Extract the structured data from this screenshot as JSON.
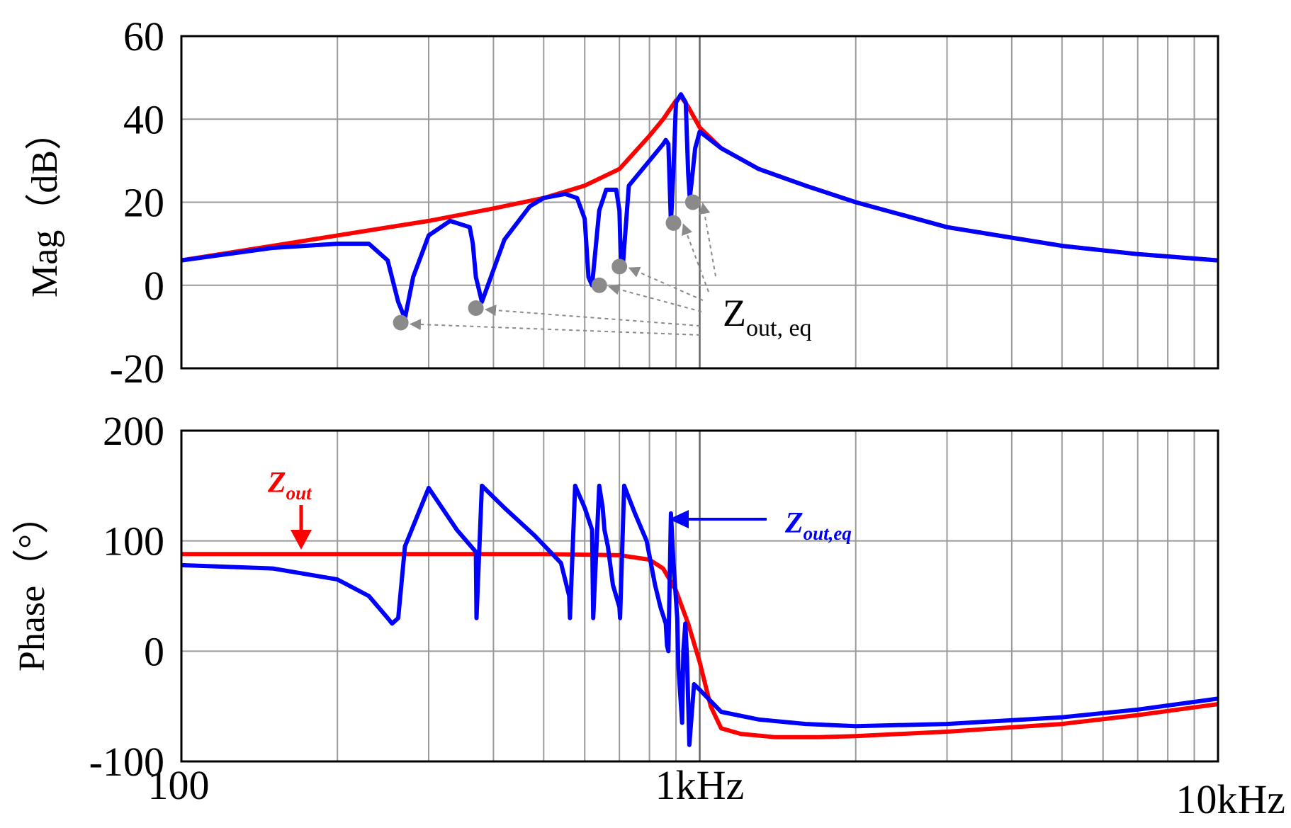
{
  "chart_data": [
    {
      "type": "line",
      "panel": "magnitude",
      "ylabel": "Mag（dB）",
      "xscale": "log",
      "xlim": [
        100,
        10000
      ],
      "ylim": [
        -20,
        60
      ],
      "yticks": [
        "60",
        "40",
        "20",
        "0",
        "-20"
      ],
      "grid": true,
      "series": [
        {
          "name": "Zout",
          "color": "#ff0000",
          "x": [
            100,
            150,
            200,
            300,
            400,
            500,
            600,
            700,
            800,
            850,
            900,
            920,
            950,
            1000,
            1100,
            1300,
            1600,
            2000,
            3000,
            5000,
            7000,
            10000
          ],
          "y": [
            6,
            9.5,
            12,
            15.5,
            18.5,
            21,
            24,
            28,
            36,
            40,
            44.5,
            45.5,
            43,
            38,
            33,
            28,
            24,
            20,
            14,
            9.5,
            7.5,
            6
          ]
        },
        {
          "name": "Zout,eq",
          "color": "#0000ff",
          "x": [
            100,
            150,
            200,
            230,
            250,
            262,
            270,
            280,
            300,
            330,
            360,
            365,
            370,
            380,
            420,
            470,
            500,
            550,
            580,
            600,
            610,
            620,
            640,
            660,
            690,
            700,
            705,
            710,
            730,
            800,
            850,
            860,
            870,
            880,
            890,
            900,
            920,
            940,
            950,
            957,
            965,
            980,
            1000,
            1100,
            1300,
            1600,
            2000,
            3000,
            5000,
            7000,
            10000
          ],
          "y": [
            6,
            9,
            10,
            10,
            6,
            -4,
            -8,
            2,
            12,
            15.5,
            14,
            10,
            2,
            -4,
            11,
            19,
            21,
            22,
            21,
            16,
            2,
            0,
            18,
            23,
            23,
            18,
            4,
            4,
            24,
            30,
            34,
            35,
            34,
            15,
            28,
            44,
            46,
            44,
            27,
            21,
            25,
            33,
            37,
            33,
            28,
            24,
            20,
            14,
            9.5,
            7.5,
            6
          ]
        }
      ],
      "markers_db": [
        {
          "x": 265,
          "y": -9
        },
        {
          "x": 370,
          "y": -5.5
        },
        {
          "x": 640,
          "y": 0
        },
        {
          "x": 700,
          "y": 4.5
        },
        {
          "x": 890,
          "y": 15
        },
        {
          "x": 970,
          "y": 20
        }
      ],
      "annotation": {
        "main": "Z",
        "sub": "out, eq"
      }
    },
    {
      "type": "line",
      "panel": "phase",
      "ylabel": "Phase（°）",
      "xscale": "log",
      "xlim": [
        100,
        10000
      ],
      "ylim": [
        -100,
        200
      ],
      "yticks": [
        "200",
        "100",
        "0",
        "-100"
      ],
      "xticks": [
        {
          "value": 100,
          "label": "100"
        },
        {
          "value": 1000,
          "label": "1kHz"
        },
        {
          "value": 10000,
          "label": "10kHz"
        }
      ],
      "grid": true,
      "series": [
        {
          "name": "Zout",
          "color": "#ff0000",
          "x": [
            100,
            500,
            700,
            800,
            850,
            900,
            950,
            1000,
            1050,
            1100,
            1200,
            1400,
            1700,
            2000,
            3000,
            5000,
            7000,
            10000
          ],
          "y": [
            88,
            88,
            87,
            83,
            75,
            55,
            25,
            -10,
            -50,
            -70,
            -75,
            -78,
            -78,
            -77,
            -73,
            -66,
            -58,
            -48
          ],
          "label": {
            "main": "Z",
            "sub": "out"
          }
        },
        {
          "name": "Zout,eq",
          "color": "#0000ff",
          "x": [
            100,
            150,
            200,
            230,
            250,
            255,
            262,
            270,
            300,
            340,
            370,
            371,
            380,
            420,
            480,
            540,
            560,
            562,
            575,
            600,
            620,
            623,
            640,
            650,
            655,
            665,
            680,
            700,
            702,
            715,
            750,
            790,
            820,
            840,
            860,
            865,
            870,
            880,
            890,
            905,
            910,
            925,
            930,
            938,
            945,
            955,
            975,
            1000,
            1100,
            1300,
            1600,
            2000,
            3000,
            5000,
            7000,
            10000
          ],
          "y": [
            78,
            75,
            65,
            50,
            30,
            25,
            30,
            95,
            148,
            110,
            90,
            30,
            150,
            130,
            105,
            80,
            50,
            30,
            150,
            130,
            110,
            30,
            150,
            130,
            110,
            95,
            60,
            40,
            30,
            150,
            125,
            100,
            60,
            40,
            25,
            5,
            0,
            125,
            80,
            30,
            -15,
            -65,
            0,
            25,
            -5,
            -85,
            -30,
            -35,
            -55,
            -62,
            -66,
            -68,
            -66,
            -60,
            -53,
            -43
          ],
          "label": {
            "main": "Z",
            "sub": "out,eq"
          }
        }
      ]
    }
  ]
}
